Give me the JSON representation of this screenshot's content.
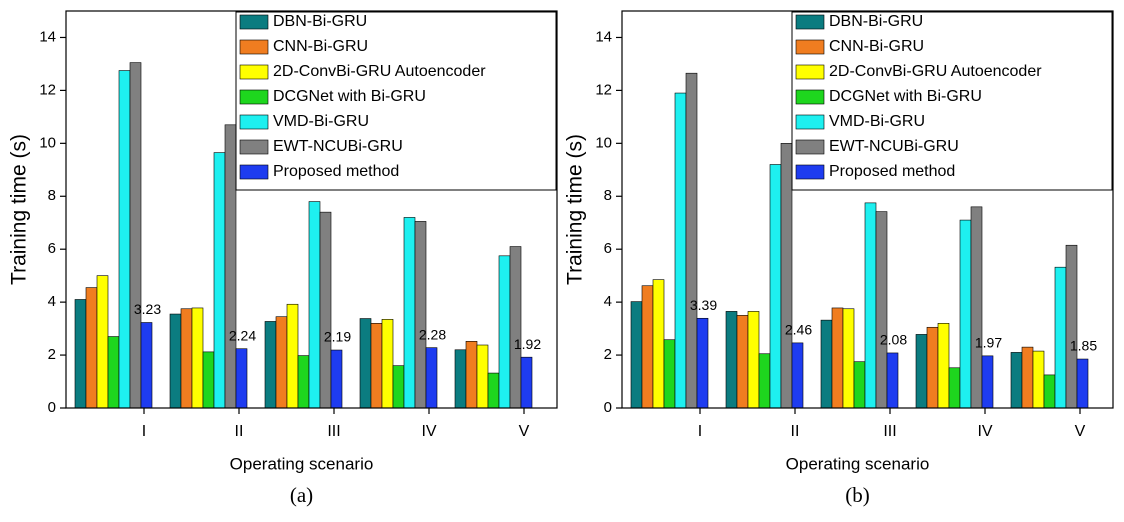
{
  "chart_data": [
    {
      "type": "bar",
      "caption": "(a)",
      "y_label": "Training time (s)",
      "x_label": "Operating scenario",
      "categories": [
        "I",
        "II",
        "III",
        "IV",
        "V"
      ],
      "ylim": [
        0,
        15
      ],
      "yticks": [
        0,
        2,
        4,
        6,
        8,
        10,
        12,
        14
      ],
      "series": [
        {
          "name": "DBN-Bi-GRU",
          "color": "#0b7c80",
          "values": [
            4.1,
            3.55,
            3.27,
            3.38,
            2.2
          ]
        },
        {
          "name": "CNN-Bi-GRU",
          "color": "#f07d20",
          "values": [
            4.55,
            3.75,
            3.45,
            3.2,
            2.52
          ]
        },
        {
          "name": "2D-ConvBi-GRU Autoencoder",
          "color": "#ffff00",
          "values": [
            5.0,
            3.78,
            3.92,
            3.35,
            2.38
          ]
        },
        {
          "name": "DCGNet with Bi-GRU",
          "color": "#1ed61e",
          "values": [
            2.7,
            2.12,
            1.98,
            1.6,
            1.32
          ]
        },
        {
          "name": "VMD-Bi-GRU",
          "color": "#1ef0f0",
          "values": [
            12.75,
            9.65,
            7.8,
            7.2,
            5.75
          ]
        },
        {
          "name": "EWT-NCUBi-GRU",
          "color": "#808080",
          "values": [
            13.05,
            10.7,
            7.4,
            7.05,
            6.1
          ]
        },
        {
          "name": "Proposed method",
          "color": "#1e3cf0",
          "show_labels": true,
          "values": [
            3.23,
            2.24,
            2.19,
            2.28,
            1.92
          ]
        }
      ]
    },
    {
      "type": "bar",
      "caption": "(b)",
      "y_label": "Training time (s)",
      "x_label": "Operating scenario",
      "categories": [
        "I",
        "II",
        "III",
        "IV",
        "V"
      ],
      "ylim": [
        0,
        15
      ],
      "yticks": [
        0,
        2,
        4,
        6,
        8,
        10,
        12,
        14
      ],
      "series": [
        {
          "name": "DBN-Bi-GRU",
          "color": "#0b7c80",
          "values": [
            4.02,
            3.65,
            3.32,
            2.78,
            2.1
          ]
        },
        {
          "name": "CNN-Bi-GRU",
          "color": "#f07d20",
          "values": [
            4.62,
            3.5,
            3.78,
            3.05,
            2.3
          ]
        },
        {
          "name": "2D-ConvBi-GRU Autoencoder",
          "color": "#ffff00",
          "values": [
            4.85,
            3.65,
            3.75,
            3.2,
            2.15
          ]
        },
        {
          "name": "DCGNet with Bi-GRU",
          "color": "#1ed61e",
          "values": [
            2.58,
            2.05,
            1.75,
            1.52,
            1.25
          ]
        },
        {
          "name": "VMD-Bi-GRU",
          "color": "#1ef0f0",
          "values": [
            11.9,
            9.2,
            7.75,
            7.1,
            5.32
          ]
        },
        {
          "name": "EWT-NCUBi-GRU",
          "color": "#808080",
          "values": [
            12.65,
            10.0,
            7.42,
            7.6,
            6.15
          ]
        },
        {
          "name": "Proposed method",
          "color": "#1e3cf0",
          "show_labels": true,
          "values": [
            3.39,
            2.46,
            2.08,
            1.97,
            1.85
          ]
        }
      ]
    }
  ]
}
